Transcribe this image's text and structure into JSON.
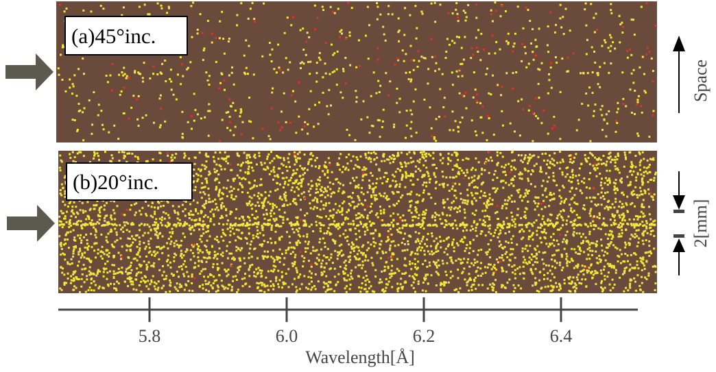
{
  "panels": [
    {
      "label": "(a)45°inc."
    },
    {
      "label": "(b)20°inc."
    }
  ],
  "axis": {
    "label": "Wavelength[Å]",
    "xlim": [
      5.667,
      6.512
    ],
    "xticks": [
      5.8,
      {
        "value": 6,
        "label": "6.0"
      },
      6.2,
      6.4
    ]
  },
  "side_labels": {
    "space": "Space",
    "scale": "2[mm]"
  }
}
